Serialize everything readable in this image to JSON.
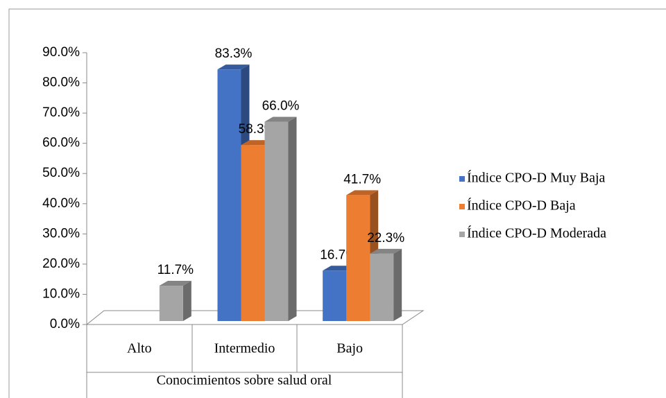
{
  "chart_data": {
    "type": "bar3d",
    "x_label": "Conocimientos sobre salud oral",
    "categories": [
      "Alto",
      "Intermedio",
      "Bajo"
    ],
    "series": [
      {
        "name": "Índice CPO-D Muy Baja",
        "color": "#4472c4",
        "values": [
          null,
          83.3,
          16.7
        ],
        "value_labels": [
          null,
          "83.3%",
          "16.7%"
        ]
      },
      {
        "name": "Índice CPO-D Baja",
        "color": "#ed7d31",
        "values": [
          null,
          58.3,
          41.7
        ],
        "value_labels": [
          null,
          "58.3%",
          "41.7%"
        ]
      },
      {
        "name": "Índice CPO-D Moderada",
        "color": "#a5a5a5",
        "values": [
          11.7,
          66.0,
          22.3
        ],
        "value_labels": [
          "11.7%",
          "66.0%",
          "22.3%"
        ]
      }
    ],
    "ylim": [
      0,
      90
    ],
    "yticks": [
      {
        "value": 0,
        "label": "0.0%"
      },
      {
        "value": 10,
        "label": "10.0%"
      },
      {
        "value": 20,
        "label": "20.0%"
      },
      {
        "value": 30,
        "label": "30.0%"
      },
      {
        "value": 40,
        "label": "40.0%"
      },
      {
        "value": 50,
        "label": "50.0%"
      },
      {
        "value": 60,
        "label": "60.0%"
      },
      {
        "value": 70,
        "label": "70.0%"
      },
      {
        "value": 80,
        "label": "80.0%"
      },
      {
        "value": 90,
        "label": "90.0%"
      }
    ],
    "legend": "right"
  }
}
